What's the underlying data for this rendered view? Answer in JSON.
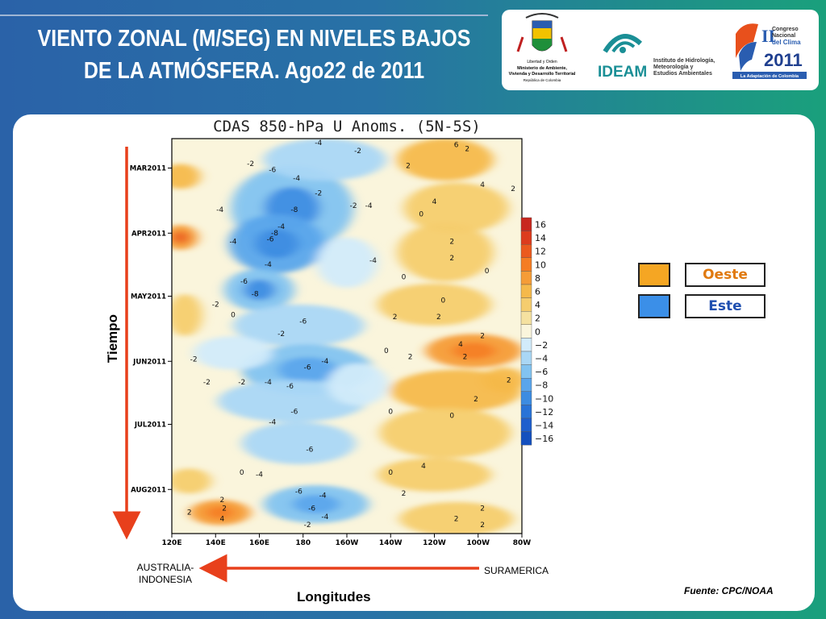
{
  "slide": {
    "title_line1": "VIENTO ZONAL (M/SEG) EN NIVELES BAJOS",
    "title_line2": "DE LA ATMÓSFERA. Ago22 de 2011",
    "axis_time_label": "Tiempo",
    "axis_lon_label": "Longitudes",
    "west_end_label_1": "AUSTRALIA-",
    "west_end_label_2": "INDONESIA",
    "east_end_label": "SURAMERICA",
    "source": "Fuente: CPC/NOAA",
    "legend_west": "Oeste",
    "legend_east": "Este",
    "colors": {
      "west": "#f5a623",
      "east": "#3b8fe8",
      "arrow": "#e8401c"
    }
  },
  "logos": {
    "ministry_1": "Libertad y Orden",
    "ministry_2": "Ministerio de Ambiente,",
    "ministry_3": "Vivienda y Desarrollo Territorial",
    "ministry_4": "República de Colombia",
    "ideam": "IDEAM",
    "ideam_inst_1": "Instituto de Hidrología,",
    "ideam_inst_2": "Meteorología y",
    "ideam_inst_3": "Estudios Ambientales",
    "congress_1": "Congreso",
    "congress_2": "Nacional",
    "congress_3": "del Clima",
    "congress_num": "II",
    "congress_year": "2011",
    "congress_tag": "La Adaptación de Colombia"
  },
  "chart_data": {
    "type": "heatmap",
    "title": "CDAS 850-hPa U Anoms. (5N-5S)",
    "x_tick_labels": [
      "120E",
      "140E",
      "160E",
      "180",
      "160W",
      "140W",
      "120W",
      "100W",
      "80W"
    ],
    "x": [
      120,
      140,
      160,
      180,
      200,
      220,
      240,
      260,
      280
    ],
    "y_tick_labels": [
      "MAR2011",
      "APR2011",
      "MAY2011",
      "JUN2011",
      "JUL2011",
      "AUG2011"
    ],
    "ylim": [
      "2011-02-15",
      "2011-08-22"
    ],
    "colorbar_levels": [
      16,
      14,
      12,
      10,
      8,
      6,
      4,
      2,
      0,
      -2,
      -4,
      -6,
      -8,
      -10,
      -12,
      -14,
      -16
    ],
    "colorbar_labels": [
      "16",
      "14",
      "12",
      "10",
      "8",
      "6",
      "4",
      "2",
      "0",
      "−2",
      "−4",
      "−6",
      "−8",
      "−10",
      "−12",
      "−14",
      "−16"
    ],
    "colorbar_colors": [
      "#c8281e",
      "#dc3c1e",
      "#eb5a1e",
      "#f57d23",
      "#f59c37",
      "#f5b94b",
      "#f5cd6e",
      "#f5e1a0",
      "#faf5dc",
      "#d2ebfa",
      "#aad7f5",
      "#82c3f0",
      "#5aa5eb",
      "#3c8ce1",
      "#2873d7",
      "#1e5fcd",
      "#1450be"
    ],
    "contour_labels": [
      {
        "lon": 187,
        "date": "2011-02-18",
        "v": "-4"
      },
      {
        "lon": 205,
        "date": "2011-02-22",
        "v": "-2"
      },
      {
        "lon": 156,
        "date": "2011-02-28",
        "v": "-2"
      },
      {
        "lon": 166,
        "date": "2011-03-03",
        "v": "-6"
      },
      {
        "lon": 177,
        "date": "2011-03-07",
        "v": "-4"
      },
      {
        "lon": 228,
        "date": "2011-03-01",
        "v": "2"
      },
      {
        "lon": 250,
        "date": "2011-02-19",
        "v": "6"
      },
      {
        "lon": 255,
        "date": "2011-02-21",
        "v": "2"
      },
      {
        "lon": 187,
        "date": "2011-03-14",
        "v": "-2"
      },
      {
        "lon": 203,
        "date": "2011-03-20",
        "v": "-2"
      },
      {
        "lon": 176,
        "date": "2011-03-22",
        "v": "-8"
      },
      {
        "lon": 210,
        "date": "2011-03-20",
        "v": "-4"
      },
      {
        "lon": 142,
        "date": "2011-03-22",
        "v": "-4"
      },
      {
        "lon": 234,
        "date": "2011-03-24",
        "v": "0"
      },
      {
        "lon": 240,
        "date": "2011-03-18",
        "v": "4"
      },
      {
        "lon": 262,
        "date": "2011-03-10",
        "v": "4"
      },
      {
        "lon": 276,
        "date": "2011-03-12",
        "v": "2"
      },
      {
        "lon": 167,
        "date": "2011-04-02",
        "v": "-8"
      },
      {
        "lon": 165,
        "date": "2011-04-05",
        "v": "-6"
      },
      {
        "lon": 170,
        "date": "2011-03-30",
        "v": "-4"
      },
      {
        "lon": 148,
        "date": "2011-04-06",
        "v": "-4"
      },
      {
        "lon": 212,
        "date": "2011-04-15",
        "v": "-4"
      },
      {
        "lon": 164,
        "date": "2011-04-17",
        "v": "-4"
      },
      {
        "lon": 248,
        "date": "2011-04-06",
        "v": "2"
      },
      {
        "lon": 248,
        "date": "2011-04-14",
        "v": "2"
      },
      {
        "lon": 153,
        "date": "2011-04-25",
        "v": "-6"
      },
      {
        "lon": 158,
        "date": "2011-05-01",
        "v": "-8"
      },
      {
        "lon": 226,
        "date": "2011-04-23",
        "v": "0"
      },
      {
        "lon": 244,
        "date": "2011-05-04",
        "v": "0"
      },
      {
        "lon": 264,
        "date": "2011-04-20",
        "v": "0"
      },
      {
        "lon": 140,
        "date": "2011-05-06",
        "v": "-2"
      },
      {
        "lon": 148,
        "date": "2011-05-11",
        "v": "0"
      },
      {
        "lon": 180,
        "date": "2011-05-14",
        "v": "-6"
      },
      {
        "lon": 170,
        "date": "2011-05-20",
        "v": "-2"
      },
      {
        "lon": 222,
        "date": "2011-05-12",
        "v": "2"
      },
      {
        "lon": 242,
        "date": "2011-05-12",
        "v": "2"
      },
      {
        "lon": 262,
        "date": "2011-05-21",
        "v": "2"
      },
      {
        "lon": 252,
        "date": "2011-05-25",
        "v": "4"
      },
      {
        "lon": 254,
        "date": "2011-05-31",
        "v": "2"
      },
      {
        "lon": 218,
        "date": "2011-05-28",
        "v": "0"
      },
      {
        "lon": 229,
        "date": "2011-05-31",
        "v": "2"
      },
      {
        "lon": 190,
        "date": "2011-06-02",
        "v": "-4"
      },
      {
        "lon": 182,
        "date": "2011-06-05",
        "v": "-6"
      },
      {
        "lon": 130,
        "date": "2011-06-01",
        "v": "-2"
      },
      {
        "lon": 136,
        "date": "2011-06-12",
        "v": "-2"
      },
      {
        "lon": 152,
        "date": "2011-06-12",
        "v": "-2"
      },
      {
        "lon": 164,
        "date": "2011-06-12",
        "v": "-4"
      },
      {
        "lon": 174,
        "date": "2011-06-14",
        "v": "-6"
      },
      {
        "lon": 274,
        "date": "2011-06-11",
        "v": "2"
      },
      {
        "lon": 220,
        "date": "2011-06-26",
        "v": "0"
      },
      {
        "lon": 176,
        "date": "2011-06-26",
        "v": "-6"
      },
      {
        "lon": 166,
        "date": "2011-07-01",
        "v": "-4"
      },
      {
        "lon": 248,
        "date": "2011-06-28",
        "v": "0"
      },
      {
        "lon": 259,
        "date": "2011-06-20",
        "v": "2"
      },
      {
        "lon": 183,
        "date": "2011-07-14",
        "v": "-6"
      },
      {
        "lon": 152,
        "date": "2011-07-25",
        "v": "0"
      },
      {
        "lon": 160,
        "date": "2011-07-26",
        "v": "-4"
      },
      {
        "lon": 178,
        "date": "2011-08-03",
        "v": "-6"
      },
      {
        "lon": 189,
        "date": "2011-08-05",
        "v": "-4"
      },
      {
        "lon": 220,
        "date": "2011-07-25",
        "v": "0"
      },
      {
        "lon": 235,
        "date": "2011-07-22",
        "v": "4"
      },
      {
        "lon": 226,
        "date": "2011-08-04",
        "v": "2"
      },
      {
        "lon": 143,
        "date": "2011-08-07",
        "v": "2"
      },
      {
        "lon": 144,
        "date": "2011-08-11",
        "v": "2"
      },
      {
        "lon": 128,
        "date": "2011-08-13",
        "v": "2"
      },
      {
        "lon": 143,
        "date": "2011-08-16",
        "v": "4"
      },
      {
        "lon": 184,
        "date": "2011-08-11",
        "v": "-6"
      },
      {
        "lon": 190,
        "date": "2011-08-15",
        "v": "-4"
      },
      {
        "lon": 182,
        "date": "2011-08-19",
        "v": "-2"
      },
      {
        "lon": 262,
        "date": "2011-08-11",
        "v": "2"
      },
      {
        "lon": 250,
        "date": "2011-08-16",
        "v": "2"
      },
      {
        "lon": 262,
        "date": "2011-08-19",
        "v": "2"
      }
    ]
  }
}
